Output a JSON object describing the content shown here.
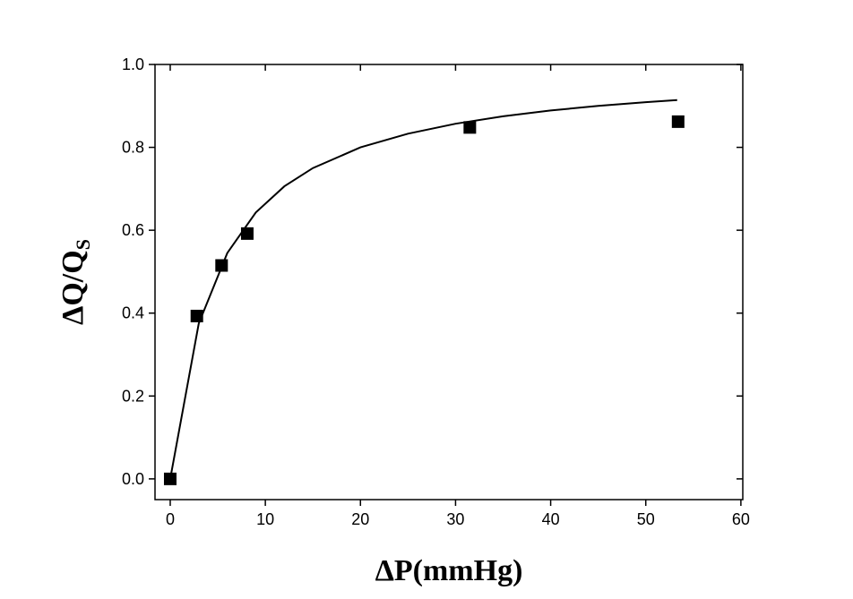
{
  "chart_data": {
    "type": "scatter",
    "xlabel": "ΔP(mmHg)",
    "ylabel": {
      "text": "ΔQ/Q",
      "subscript": "S"
    },
    "x": [
      0,
      2.8,
      5.4,
      8.1,
      31.5,
      53.4
    ],
    "values": [
      0,
      0.393,
      0.515,
      0.592,
      0.848,
      0.862
    ],
    "color": "#000000",
    "fit": {
      "x": [
        0,
        3,
        6,
        9,
        12,
        15,
        20,
        25,
        30,
        35,
        40,
        45,
        50,
        53.3
      ],
      "values": [
        0,
        0.375,
        0.545,
        0.643,
        0.706,
        0.75,
        0.8,
        0.833,
        0.857,
        0.875,
        0.889,
        0.9,
        0.909,
        0.914
      ],
      "color": "#000000"
    },
    "xlim": [
      -1.6,
      60.2
    ],
    "ylim": [
      -0.05,
      1.0
    ],
    "xticks": [
      0,
      10,
      20,
      30,
      40,
      50,
      60
    ],
    "yticks": [
      {
        "value": 0,
        "label": "0.0"
      },
      0.2,
      0.4,
      0.6,
      0.8,
      {
        "value": 1,
        "label": "1.0"
      }
    ]
  }
}
